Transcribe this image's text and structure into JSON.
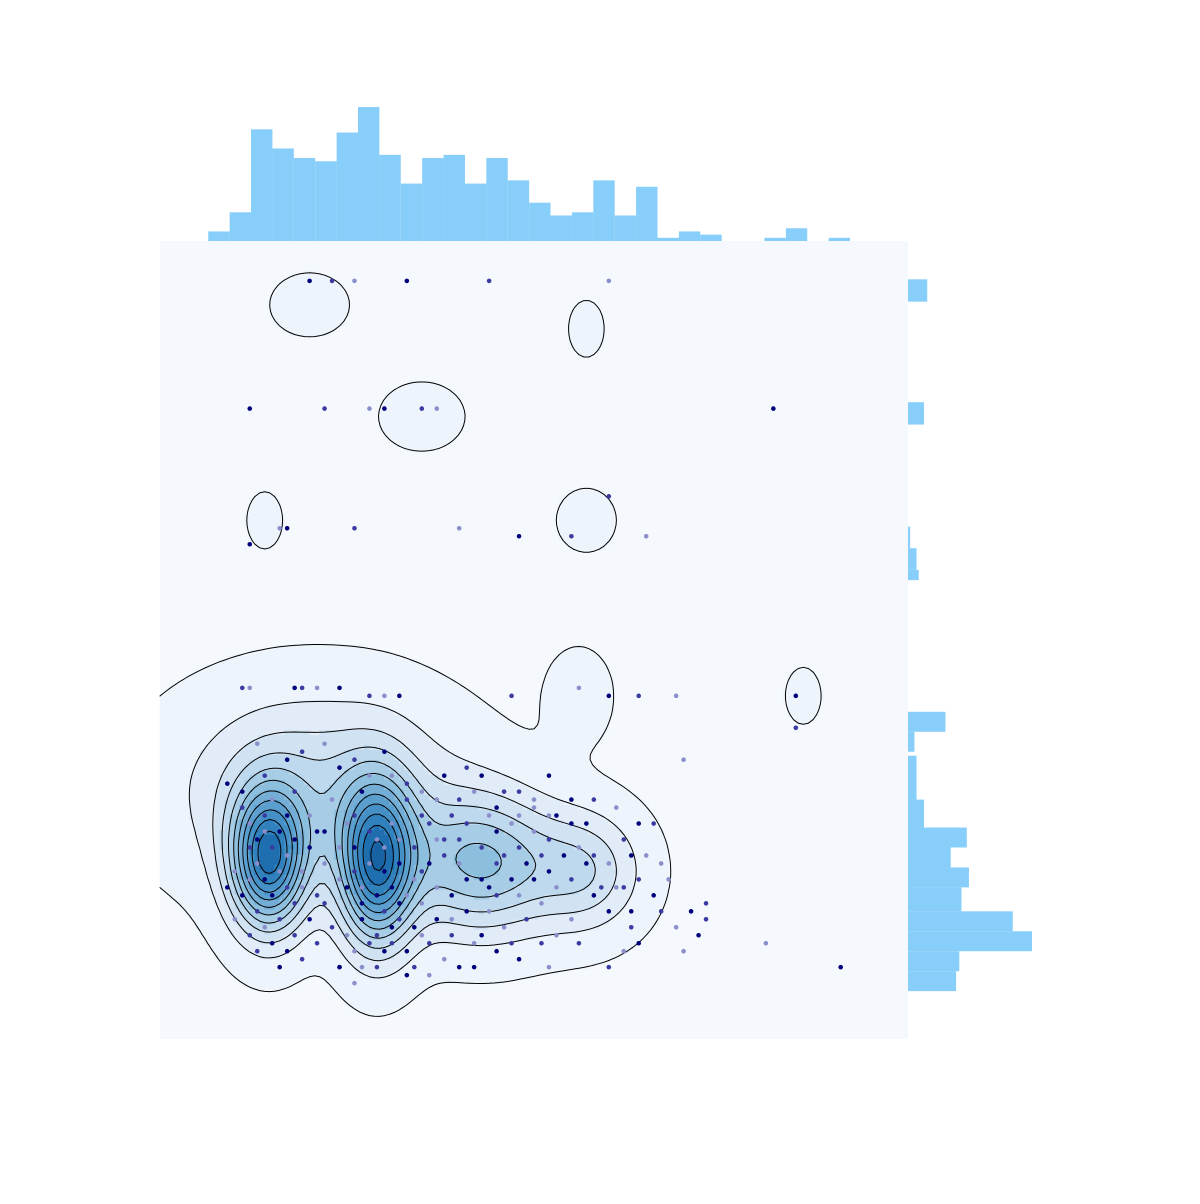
{
  "chart_data": {
    "type": "scatter",
    "title": "",
    "xlabel": "",
    "ylabel": "",
    "xlim": [
      0,
      1
    ],
    "ylim": [
      0,
      1
    ],
    "grid": false,
    "legend": "none",
    "colors": {
      "panel_background": "#f5f9fe",
      "histogram": "#87cefa",
      "point_dark": "#00007a",
      "point_mid": "#3a3aa0",
      "point_light": "#8a8fcc",
      "contour_line": "#000000",
      "kde_fill_scale": [
        "#edf4fc",
        "#e1ecf8",
        "#d1e3f3",
        "#bed9ee",
        "#a6cce6",
        "#8cbede",
        "#74aed6",
        "#5b9fcf",
        "#4590c7",
        "#3181bd",
        "#1f6fb0",
        "#1763a3"
      ]
    },
    "series": [
      {
        "kind": "scatter",
        "points": [
          [
            0.2,
            0.95
          ],
          [
            0.23,
            0.95
          ],
          [
            0.26,
            0.95
          ],
          [
            0.33,
            0.95
          ],
          [
            0.44,
            0.95
          ],
          [
            0.6,
            0.95
          ],
          [
            0.12,
            0.79
          ],
          [
            0.22,
            0.79
          ],
          [
            0.28,
            0.79
          ],
          [
            0.3,
            0.79
          ],
          [
            0.35,
            0.79
          ],
          [
            0.37,
            0.79
          ],
          [
            0.82,
            0.79
          ],
          [
            0.6,
            0.68
          ],
          [
            0.16,
            0.64
          ],
          [
            0.17,
            0.64
          ],
          [
            0.26,
            0.64
          ],
          [
            0.4,
            0.64
          ],
          [
            0.48,
            0.63
          ],
          [
            0.55,
            0.63
          ],
          [
            0.65,
            0.63
          ],
          [
            0.12,
            0.62
          ],
          [
            0.11,
            0.44
          ],
          [
            0.12,
            0.44
          ],
          [
            0.18,
            0.44
          ],
          [
            0.19,
            0.44
          ],
          [
            0.21,
            0.44
          ],
          [
            0.24,
            0.44
          ],
          [
            0.28,
            0.43
          ],
          [
            0.3,
            0.43
          ],
          [
            0.32,
            0.43
          ],
          [
            0.47,
            0.43
          ],
          [
            0.56,
            0.44
          ],
          [
            0.6,
            0.43
          ],
          [
            0.64,
            0.43
          ],
          [
            0.69,
            0.43
          ],
          [
            0.85,
            0.43
          ],
          [
            0.85,
            0.39
          ],
          [
            0.13,
            0.37
          ],
          [
            0.17,
            0.35
          ],
          [
            0.19,
            0.36
          ],
          [
            0.22,
            0.37
          ],
          [
            0.24,
            0.34
          ],
          [
            0.26,
            0.35
          ],
          [
            0.28,
            0.33
          ],
          [
            0.3,
            0.36
          ],
          [
            0.33,
            0.32
          ],
          [
            0.35,
            0.31
          ],
          [
            0.38,
            0.33
          ],
          [
            0.4,
            0.3
          ],
          [
            0.42,
            0.31
          ],
          [
            0.45,
            0.29
          ],
          [
            0.48,
            0.31
          ],
          [
            0.52,
            0.28
          ],
          [
            0.55,
            0.3
          ],
          [
            0.58,
            0.3
          ],
          [
            0.61,
            0.29
          ],
          [
            0.64,
            0.27
          ],
          [
            0.66,
            0.27
          ],
          [
            0.7,
            0.35
          ],
          [
            0.09,
            0.32
          ],
          [
            0.11,
            0.29
          ],
          [
            0.12,
            0.27
          ],
          [
            0.13,
            0.25
          ],
          [
            0.14,
            0.28
          ],
          [
            0.13,
            0.22
          ],
          [
            0.14,
            0.2
          ],
          [
            0.15,
            0.24
          ],
          [
            0.16,
            0.21
          ],
          [
            0.16,
            0.26
          ],
          [
            0.17,
            0.19
          ],
          [
            0.17,
            0.23
          ],
          [
            0.18,
            0.25
          ],
          [
            0.12,
            0.24
          ],
          [
            0.1,
            0.21
          ],
          [
            0.11,
            0.18
          ],
          [
            0.13,
            0.16
          ],
          [
            0.14,
            0.14
          ],
          [
            0.15,
            0.12
          ],
          [
            0.12,
            0.13
          ],
          [
            0.1,
            0.15
          ],
          [
            0.09,
            0.19
          ],
          [
            0.18,
            0.17
          ],
          [
            0.19,
            0.21
          ],
          [
            0.2,
            0.15
          ],
          [
            0.21,
            0.18
          ],
          [
            0.22,
            0.22
          ],
          [
            0.22,
            0.26
          ],
          [
            0.23,
            0.14
          ],
          [
            0.24,
            0.2
          ],
          [
            0.17,
            0.11
          ],
          [
            0.19,
            0.1
          ],
          [
            0.25,
            0.27
          ],
          [
            0.26,
            0.24
          ],
          [
            0.26,
            0.21
          ],
          [
            0.27,
            0.19
          ],
          [
            0.27,
            0.15
          ],
          [
            0.28,
            0.26
          ],
          [
            0.28,
            0.22
          ],
          [
            0.29,
            0.18
          ],
          [
            0.29,
            0.13
          ],
          [
            0.3,
            0.24
          ],
          [
            0.3,
            0.21
          ],
          [
            0.3,
            0.16
          ],
          [
            0.31,
            0.27
          ],
          [
            0.31,
            0.19
          ],
          [
            0.31,
            0.12
          ],
          [
            0.32,
            0.25
          ],
          [
            0.32,
            0.22
          ],
          [
            0.32,
            0.15
          ],
          [
            0.33,
            0.18
          ],
          [
            0.33,
            0.11
          ],
          [
            0.34,
            0.24
          ],
          [
            0.34,
            0.2
          ],
          [
            0.34,
            0.14
          ],
          [
            0.35,
            0.28
          ],
          [
            0.35,
            0.17
          ],
          [
            0.36,
            0.22
          ],
          [
            0.36,
            0.12
          ],
          [
            0.37,
            0.19
          ],
          [
            0.37,
            0.15
          ],
          [
            0.38,
            0.25
          ],
          [
            0.38,
            0.1
          ],
          [
            0.39,
            0.18
          ],
          [
            0.39,
            0.13
          ],
          [
            0.4,
            0.22
          ],
          [
            0.41,
            0.16
          ],
          [
            0.41,
            0.27
          ],
          [
            0.42,
            0.12
          ],
          [
            0.43,
            0.2
          ],
          [
            0.43,
            0.24
          ],
          [
            0.44,
            0.16
          ],
          [
            0.45,
            0.11
          ],
          [
            0.45,
            0.22
          ],
          [
            0.36,
            0.08
          ],
          [
            0.33,
            0.08
          ],
          [
            0.29,
            0.09
          ],
          [
            0.27,
            0.09
          ],
          [
            0.4,
            0.09
          ],
          [
            0.24,
            0.09
          ],
          [
            0.44,
            0.28
          ],
          [
            0.45,
            0.26
          ],
          [
            0.46,
            0.23
          ],
          [
            0.47,
            0.27
          ],
          [
            0.47,
            0.2
          ],
          [
            0.48,
            0.24
          ],
          [
            0.48,
            0.18
          ],
          [
            0.49,
            0.22
          ],
          [
            0.49,
            0.15
          ],
          [
            0.5,
            0.26
          ],
          [
            0.5,
            0.2
          ],
          [
            0.51,
            0.23
          ],
          [
            0.51,
            0.17
          ],
          [
            0.52,
            0.21
          ],
          [
            0.52,
            0.25
          ],
          [
            0.53,
            0.19
          ],
          [
            0.54,
            0.23
          ],
          [
            0.55,
            0.2
          ],
          [
            0.56,
            0.24
          ],
          [
            0.57,
            0.22
          ],
          [
            0.59,
            0.19
          ],
          [
            0.6,
            0.22
          ],
          [
            0.6,
            0.16
          ],
          [
            0.62,
            0.19
          ],
          [
            0.62,
            0.11
          ],
          [
            0.63,
            0.16
          ],
          [
            0.64,
            0.2
          ],
          [
            0.65,
            0.23
          ],
          [
            0.66,
            0.18
          ],
          [
            0.67,
            0.16
          ],
          [
            0.69,
            0.14
          ],
          [
            0.71,
            0.16
          ],
          [
            0.73,
            0.17
          ],
          [
            0.7,
            0.11
          ],
          [
            0.64,
            0.12
          ],
          [
            0.56,
            0.12
          ],
          [
            0.52,
            0.09
          ],
          [
            0.48,
            0.1
          ],
          [
            0.6,
            0.09
          ],
          [
            0.55,
            0.15
          ],
          [
            0.42,
            0.09
          ],
          [
            0.38,
            0.23
          ],
          [
            0.46,
            0.14
          ],
          [
            0.44,
            0.19
          ],
          [
            0.36,
            0.27
          ],
          [
            0.26,
            0.11
          ],
          [
            0.2,
            0.24
          ],
          [
            0.16,
            0.15
          ],
          [
            0.23,
            0.3
          ],
          [
            0.27,
            0.31
          ],
          [
            0.4,
            0.25
          ],
          [
            0.5,
            0.3
          ],
          [
            0.57,
            0.27
          ],
          [
            0.62,
            0.25
          ],
          [
            0.67,
            0.22
          ],
          [
            0.24,
            0.09
          ],
          [
            0.21,
            0.12
          ],
          [
            0.26,
            0.07
          ],
          [
            0.3,
            0.11
          ],
          [
            0.34,
            0.09
          ],
          [
            0.39,
            0.15
          ],
          [
            0.43,
            0.13
          ],
          [
            0.47,
            0.12
          ],
          [
            0.53,
            0.13
          ],
          [
            0.58,
            0.18
          ],
          [
            0.63,
            0.14
          ],
          [
            0.68,
            0.2
          ],
          [
            0.72,
            0.13
          ],
          [
            0.73,
            0.15
          ],
          [
            0.81,
            0.12
          ],
          [
            0.91,
            0.09
          ],
          [
            0.18,
            0.31
          ],
          [
            0.2,
            0.28
          ],
          [
            0.11,
            0.31
          ],
          [
            0.14,
            0.33
          ],
          [
            0.15,
            0.3
          ],
          [
            0.17,
            0.28
          ],
          [
            0.33,
            0.3
          ],
          [
            0.31,
            0.33
          ],
          [
            0.43,
            0.33
          ],
          [
            0.46,
            0.31
          ],
          [
            0.5,
            0.29
          ],
          [
            0.55,
            0.27
          ],
          [
            0.39,
            0.28
          ],
          [
            0.37,
            0.3
          ],
          [
            0.52,
            0.33
          ],
          [
            0.41,
            0.34
          ],
          [
            0.12,
            0.2
          ],
          [
            0.15,
            0.18
          ],
          [
            0.22,
            0.17
          ],
          [
            0.25,
            0.13
          ],
          [
            0.32,
            0.17
          ],
          [
            0.35,
            0.21
          ],
          [
            0.29,
            0.25
          ],
          [
            0.25,
            0.19
          ],
          [
            0.18,
            0.13
          ],
          [
            0.14,
            0.26
          ],
          [
            0.21,
            0.26
          ],
          [
            0.26,
            0.28
          ],
          [
            0.37,
            0.25
          ],
          [
            0.41,
            0.2
          ],
          [
            0.45,
            0.18
          ],
          [
            0.48,
            0.28
          ],
          [
            0.53,
            0.28
          ],
          [
            0.58,
            0.23
          ],
          [
            0.61,
            0.19
          ],
          [
            0.63,
            0.23
          ],
          [
            0.51,
            0.12
          ],
          [
            0.35,
            0.13
          ],
          [
            0.31,
            0.14
          ],
          [
            0.28,
            0.12
          ],
          [
            0.19,
            0.19
          ],
          [
            0.16,
            0.09
          ],
          [
            0.13,
            0.11
          ],
          [
            0.24,
            0.24
          ],
          [
            0.27,
            0.17
          ]
        ]
      }
    ],
    "marginal_x_histogram": {
      "bin_edges_start": 0.0645,
      "bin_width": 0.0286,
      "counts": [
        3,
        9,
        35,
        29,
        26,
        25,
        34,
        42,
        27,
        18,
        26,
        27,
        18,
        26,
        19,
        12,
        8,
        9,
        19,
        8,
        17,
        1,
        3,
        2,
        0,
        0,
        1,
        4,
        0,
        1
      ]
    },
    "marginal_y_histogram": {
      "bins": [
        {
          "y_low": 0.924,
          "y_high": 0.952,
          "count": 18
        },
        {
          "y_low": 0.77,
          "y_high": 0.798,
          "count": 15
        },
        {
          "y_low": 0.615,
          "y_high": 0.642,
          "count": 2
        },
        {
          "y_low": 0.588,
          "y_high": 0.615,
          "count": 8
        },
        {
          "y_low": 0.575,
          "y_high": 0.588,
          "count": 10
        },
        {
          "y_low": 0.385,
          "y_high": 0.41,
          "count": 35
        },
        {
          "y_low": 0.36,
          "y_high": 0.385,
          "count": 6
        },
        {
          "y_low": 0.3,
          "y_high": 0.355,
          "count": 8
        },
        {
          "y_low": 0.265,
          "y_high": 0.3,
          "count": 15
        },
        {
          "y_low": 0.24,
          "y_high": 0.265,
          "count": 55
        },
        {
          "y_low": 0.215,
          "y_high": 0.24,
          "count": 40
        },
        {
          "y_low": 0.19,
          "y_high": 0.215,
          "count": 57
        },
        {
          "y_low": 0.16,
          "y_high": 0.19,
          "count": 50
        },
        {
          "y_low": 0.135,
          "y_high": 0.16,
          "count": 98
        },
        {
          "y_low": 0.11,
          "y_high": 0.135,
          "count": 116
        },
        {
          "y_low": 0.085,
          "y_high": 0.11,
          "count": 48
        },
        {
          "y_low": 0.06,
          "y_high": 0.085,
          "count": 45
        }
      ]
    },
    "kde_peaks": [
      {
        "x": 0.145,
        "y": 0.225,
        "sx": 0.035,
        "sy": 0.06,
        "w": 1.0
      },
      {
        "x": 0.29,
        "y": 0.22,
        "sx": 0.035,
        "sy": 0.07,
        "w": 1.0
      },
      {
        "x": 0.43,
        "y": 0.22,
        "sx": 0.07,
        "sy": 0.06,
        "w": 0.55
      },
      {
        "x": 0.57,
        "y": 0.21,
        "sx": 0.05,
        "sy": 0.05,
        "w": 0.3
      },
      {
        "x": 0.21,
        "y": 0.31,
        "sx": 0.12,
        "sy": 0.08,
        "w": 0.35
      },
      {
        "x": 0.2,
        "y": 0.92,
        "sx": 0.04,
        "sy": 0.03,
        "w": 0.06
      },
      {
        "x": 0.35,
        "y": 0.78,
        "sx": 0.04,
        "sy": 0.03,
        "w": 0.07
      },
      {
        "x": 0.57,
        "y": 0.89,
        "sx": 0.02,
        "sy": 0.03,
        "w": 0.05
      },
      {
        "x": 0.14,
        "y": 0.65,
        "sx": 0.02,
        "sy": 0.03,
        "w": 0.05
      },
      {
        "x": 0.57,
        "y": 0.65,
        "sx": 0.03,
        "sy": 0.03,
        "w": 0.06
      },
      {
        "x": 0.56,
        "y": 0.43,
        "sx": 0.03,
        "sy": 0.04,
        "w": 0.08
      },
      {
        "x": 0.86,
        "y": 0.43,
        "sx": 0.02,
        "sy": 0.03,
        "w": 0.05
      }
    ],
    "contour_levels": 12
  }
}
